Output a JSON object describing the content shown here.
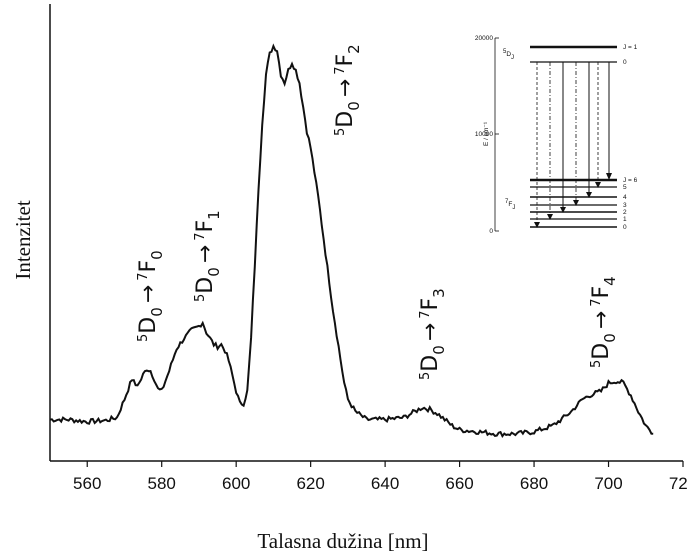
{
  "chart_data": {
    "type": "line",
    "xlabel": "Talasna dužina [nm]",
    "ylabel": "Intenzitet",
    "xlim": [
      550,
      720
    ],
    "ylim": [
      0,
      1
    ],
    "x_ticks": [
      560,
      580,
      600,
      620,
      640,
      660,
      680,
      700,
      720
    ],
    "grid": false,
    "series": [
      {
        "x": [
          550,
          555,
          560,
          565,
          568,
          570,
          572,
          573,
          574,
          575,
          576,
          577,
          578,
          579,
          580,
          582,
          584,
          586,
          588,
          590,
          591,
          592,
          594,
          595,
          596,
          597,
          598,
          600,
          601,
          602,
          603,
          604,
          605,
          606,
          607,
          608,
          609,
          610,
          611,
          612,
          613,
          614,
          615,
          616,
          617,
          618,
          619,
          620,
          622,
          624,
          626,
          628,
          629,
          630,
          632,
          635,
          640,
          645,
          648,
          650,
          652,
          654,
          656,
          658,
          660,
          665,
          670,
          675,
          680,
          685,
          688,
          690,
          693,
          695,
          698,
          700,
          702,
          704,
          706,
          708,
          710,
          712
        ],
        "values": [
          0.07,
          0.07,
          0.065,
          0.068,
          0.075,
          0.12,
          0.17,
          0.155,
          0.16,
          0.18,
          0.195,
          0.19,
          0.17,
          0.145,
          0.14,
          0.19,
          0.245,
          0.27,
          0.29,
          0.3,
          0.31,
          0.285,
          0.255,
          0.25,
          0.255,
          0.24,
          0.215,
          0.14,
          0.11,
          0.11,
          0.14,
          0.27,
          0.45,
          0.64,
          0.8,
          0.92,
          0.97,
          0.99,
          0.98,
          0.92,
          0.9,
          0.93,
          0.95,
          0.93,
          0.9,
          0.84,
          0.78,
          0.74,
          0.62,
          0.48,
          0.34,
          0.22,
          0.16,
          0.12,
          0.09,
          0.07,
          0.07,
          0.075,
          0.09,
          0.1,
          0.095,
          0.085,
          0.07,
          0.055,
          0.045,
          0.04,
          0.035,
          0.035,
          0.04,
          0.055,
          0.075,
          0.09,
          0.12,
          0.13,
          0.14,
          0.16,
          0.165,
          0.16,
          0.13,
          0.09,
          0.055,
          0.035
        ]
      }
    ],
    "transitions": [
      {
        "from_super": "5",
        "from_base": "D",
        "from_sub": "0",
        "arrow": "→",
        "to_super": "7",
        "to_base": "F",
        "to_sub": "0"
      },
      {
        "from_super": "5",
        "from_base": "D",
        "from_sub": "0",
        "arrow": "→",
        "to_super": "7",
        "to_base": "F",
        "to_sub": "1"
      },
      {
        "from_super": "5",
        "from_base": "D",
        "from_sub": "0",
        "arrow": "→",
        "to_super": "7",
        "to_base": "F",
        "to_sub": "2"
      },
      {
        "from_super": "5",
        "from_base": "D",
        "from_sub": "0",
        "arrow": "→",
        "to_super": "7",
        "to_base": "F",
        "to_sub": "3"
      },
      {
        "from_super": "5",
        "from_base": "D",
        "from_sub": "0",
        "arrow": "→",
        "to_super": "7",
        "to_base": "F",
        "to_sub": "4"
      }
    ],
    "inset": {
      "ylabel": "E / cm⁻¹",
      "y_ticks": [
        "20000",
        "10000",
        "0"
      ],
      "upper_term": {
        "super": "5",
        "base": "D",
        "sub": "J"
      },
      "lower_term": {
        "super": "7",
        "base": "F",
        "sub": "J"
      },
      "upper_levels": [
        "J = 1",
        "0"
      ],
      "lower_levels": [
        "J = 6",
        "5",
        "4",
        "3",
        "2",
        "1",
        "0"
      ]
    }
  }
}
